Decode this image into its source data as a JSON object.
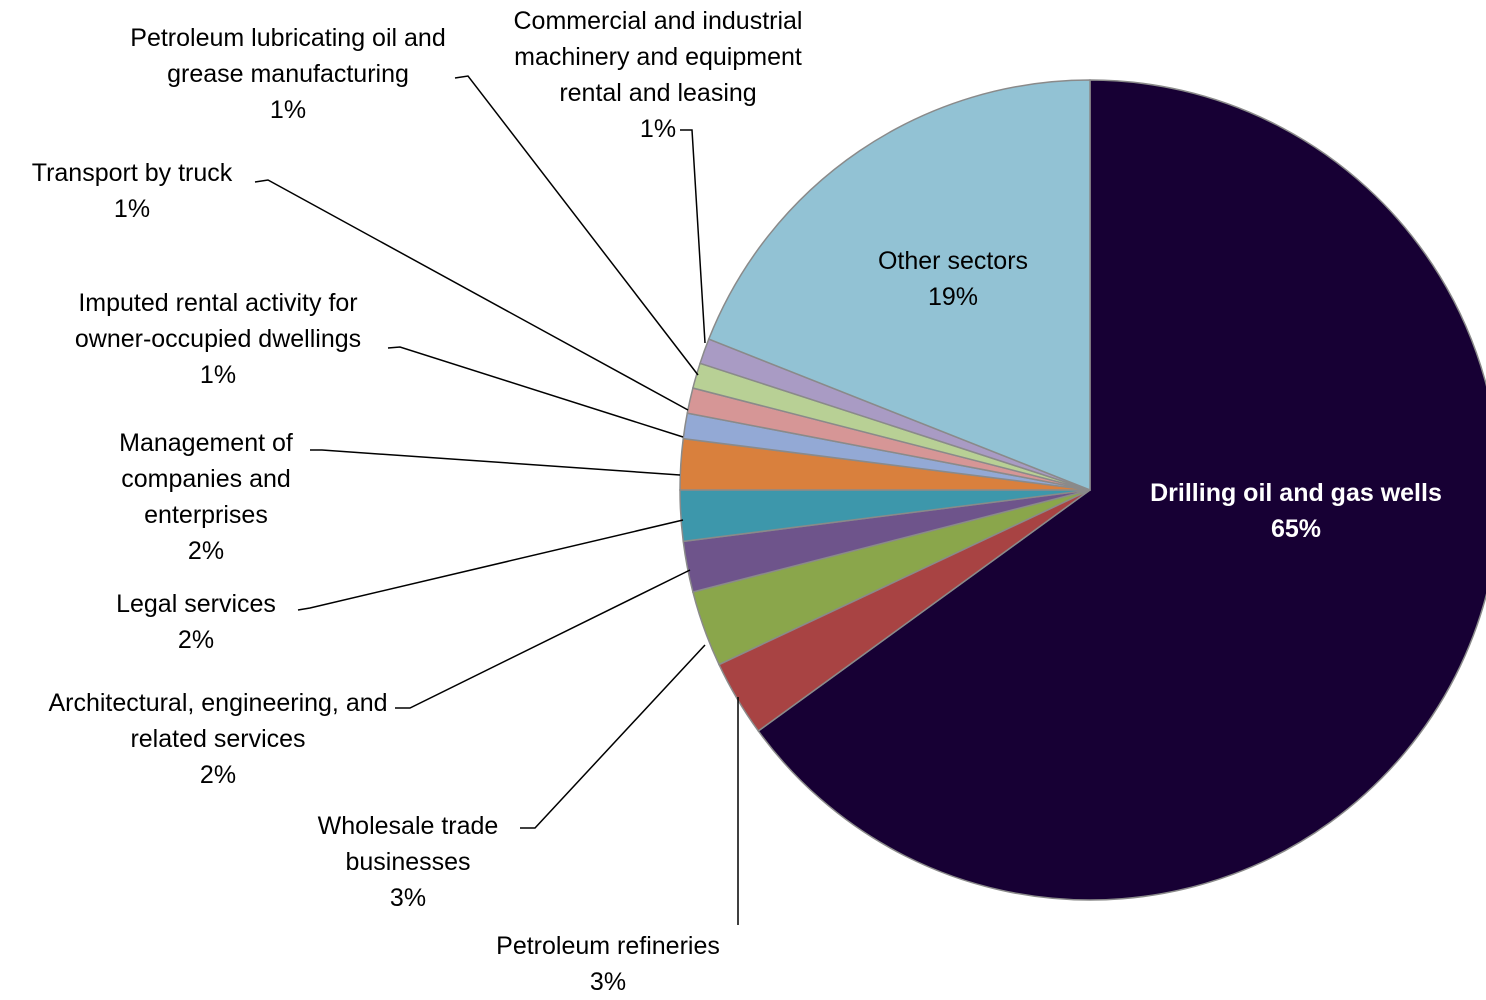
{
  "chart_data": {
    "type": "pie",
    "categories": [
      "Drilling oil and gas wells",
      "Petroleum refineries",
      "Wholesale trade businesses",
      "Architectural, engineering, and related services",
      "Legal services",
      "Management of companies and enterprises",
      "Imputed rental activity for owner-occupied dwellings",
      "Transport by truck",
      "Petroleum lubricating oil and grease manufacturing",
      "Commercial and industrial machinery and equipment rental and leasing",
      "Other sectors"
    ],
    "values": [
      65,
      3,
      3,
      2,
      2,
      2,
      1,
      1,
      1,
      1,
      19
    ],
    "value_labels": [
      "65%",
      "3%",
      "3%",
      "2%",
      "2%",
      "2%",
      "1%",
      "1%",
      "1%",
      "1%",
      "19%"
    ],
    "colors": [
      "#170034",
      "#a84343",
      "#8aa64b",
      "#6e548b",
      "#3d97ab",
      "#d9803d",
      "#93a9d5",
      "#d69696",
      "#b8d095",
      "#a99bc4",
      "#92c2d4"
    ]
  }
}
